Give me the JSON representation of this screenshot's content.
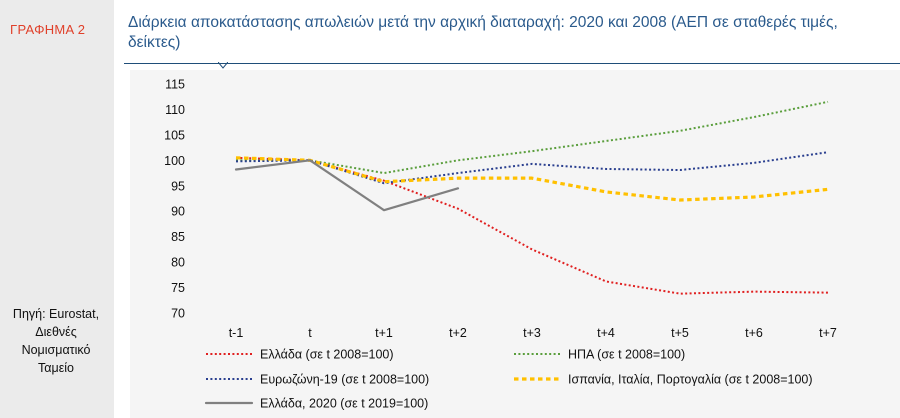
{
  "sidebar": {
    "figure_label": "ΓΡΑΦΗΜΑ 2",
    "source_lines": [
      "Πηγή: Eurostat,",
      "Διεθνές",
      "Νομισματικό",
      "Ταμείο"
    ]
  },
  "chart_data": {
    "type": "line",
    "title": "Διάρκεια αποκατάστασης απωλειών μετά την αρχική διαταραχή: 2020 και 2008 (ΑΕΠ σε σταθερές τιμές, δείκτες)",
    "title_lines": [
      "Διάρκεια αποκατάστασης απωλειών μετά την αρχική διαταραχή: 2020 και 2008 (ΑΕΠ σε σταθερές τιμές,",
      "δείκτες)"
    ],
    "categories": [
      "t-1",
      "t",
      "t+1",
      "t+2",
      "t+3",
      "t+4",
      "t+5",
      "t+6",
      "t+7"
    ],
    "ylim": [
      70,
      115
    ],
    "yticks": [
      70,
      75,
      80,
      85,
      90,
      95,
      100,
      105,
      110,
      115
    ],
    "ytick_labels": [
      "70",
      "75",
      "80",
      "85",
      "90",
      "95",
      "100",
      "105",
      "110",
      "115"
    ],
    "series": [
      {
        "name": "Ελλάδα (σε t 2008=100)",
        "color": "#e02020",
        "style": "dotted",
        "values": [
          100.5,
          100,
          96,
          90.5,
          82.5,
          76.2,
          73.8,
          74.2,
          74
        ]
      },
      {
        "name": "ΗΠΑ (σε t 2008=100)",
        "color": "#5a9e3c",
        "style": "dotted",
        "values": [
          100,
          100,
          97.5,
          100,
          101.8,
          103.8,
          105.8,
          108.5,
          111.5
        ]
      },
      {
        "name": "Ευρωζώνη-19 (σε t 2008=100)",
        "color": "#2a3f8f",
        "style": "dotted",
        "values": [
          99.8,
          100,
          95.5,
          97.5,
          99.3,
          98.3,
          98.1,
          99.5,
          101.6
        ]
      },
      {
        "name": "Ισπανία, Ιταλία, Πορτογαλία (σε t 2008=100)",
        "color": "#ffc000",
        "style": "dashed",
        "values": [
          100.5,
          100,
          95.8,
          96.5,
          96.5,
          93.8,
          92.2,
          92.8,
          94.3
        ]
      },
      {
        "name": "Ελλάδα, 2020 (σε t 2019=100)",
        "color": "#808080",
        "style": "solid",
        "values": [
          98.2,
          100,
          90.2,
          94.5,
          null,
          null,
          null,
          null,
          null
        ]
      }
    ]
  }
}
